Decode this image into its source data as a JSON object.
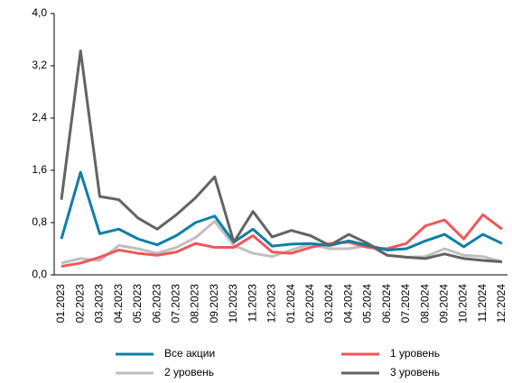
{
  "chart_data": {
    "type": "line",
    "categories": [
      "01.2023",
      "02.2023",
      "03.2023",
      "04.2023",
      "05.2023",
      "06.2023",
      "07.2023",
      "08.2023",
      "09.2023",
      "10.2023",
      "11.2023",
      "12.2023",
      "01.2024",
      "02.2024",
      "03.2024",
      "04.2024",
      "05.2024",
      "06.2024",
      "07.2024",
      "08.2024",
      "09.2024",
      "10.2024",
      "11.2024",
      "12.2024"
    ],
    "series": [
      {
        "name": "Все акции",
        "color": "#0e7fa6",
        "values": [
          0.55,
          1.57,
          0.63,
          0.7,
          0.55,
          0.46,
          0.6,
          0.8,
          0.9,
          0.5,
          0.7,
          0.44,
          0.47,
          0.48,
          0.45,
          0.52,
          0.45,
          0.38,
          0.4,
          0.52,
          0.62,
          0.43,
          0.62,
          0.48
        ]
      },
      {
        "name": "1 уровень",
        "color": "#f0565a",
        "values": [
          0.13,
          0.18,
          0.27,
          0.38,
          0.33,
          0.3,
          0.35,
          0.48,
          0.42,
          0.42,
          0.6,
          0.35,
          0.33,
          0.42,
          0.48,
          0.5,
          0.42,
          0.4,
          0.48,
          0.75,
          0.84,
          0.55,
          0.92,
          0.7
        ]
      },
      {
        "name": "2 уровень",
        "color": "#bfbfbf",
        "values": [
          0.18,
          0.25,
          0.22,
          0.45,
          0.4,
          0.33,
          0.42,
          0.57,
          0.82,
          0.45,
          0.33,
          0.28,
          0.38,
          0.47,
          0.4,
          0.4,
          0.45,
          0.3,
          0.27,
          0.28,
          0.4,
          0.3,
          0.28,
          0.2
        ]
      },
      {
        "name": "3 уровень",
        "color": "#636363",
        "values": [
          1.15,
          3.43,
          1.2,
          1.15,
          0.87,
          0.7,
          0.92,
          1.18,
          1.5,
          0.5,
          0.97,
          0.58,
          0.68,
          0.6,
          0.45,
          0.62,
          0.48,
          0.3,
          0.27,
          0.25,
          0.32,
          0.25,
          0.22,
          0.2
        ]
      }
    ],
    "ylim": [
      0,
      4
    ],
    "yticks": [
      {
        "value": 0,
        "label": "0,0"
      },
      {
        "value": 0.8,
        "label": "0,8"
      },
      {
        "value": 1.6,
        "label": "1,6"
      },
      {
        "value": 2.4,
        "label": "2,4"
      },
      {
        "value": 3.2,
        "label": "3,2"
      },
      {
        "value": 4,
        "label": "4,0"
      }
    ],
    "grid": false
  }
}
